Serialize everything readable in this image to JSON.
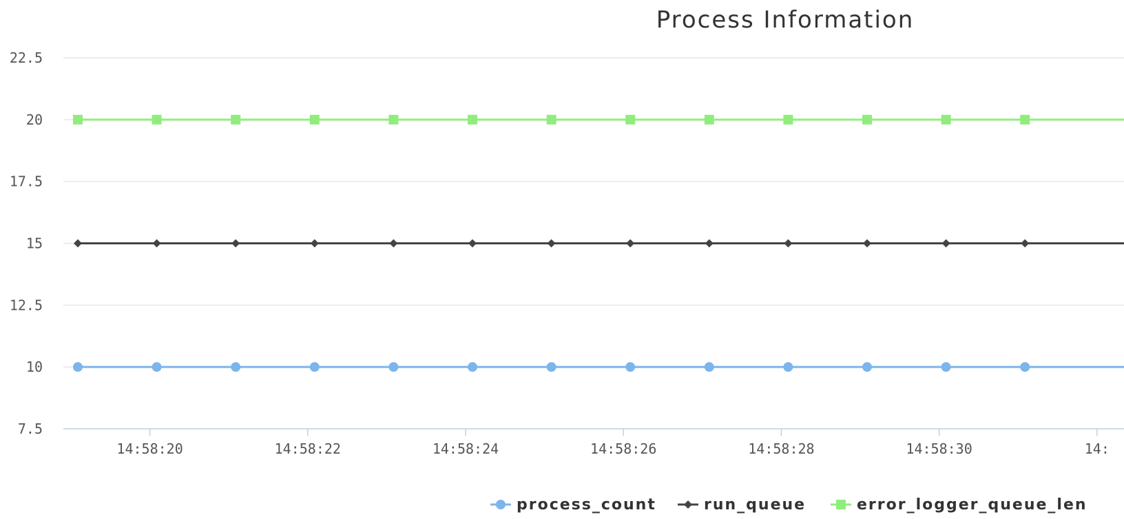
{
  "chart_data": {
    "type": "line",
    "title": "Process Information",
    "xlabel": "",
    "ylabel": "",
    "ylim": [
      7.5,
      22.5
    ],
    "y_ticks": [
      "22.5",
      "20",
      "17.5",
      "15",
      "12.5",
      "10",
      "7.5"
    ],
    "x_ticks": [
      "14:58:20",
      "14:58:22",
      "14:58:24",
      "14:58:26",
      "14:58:28",
      "14:58:30",
      "14:"
    ],
    "x": [
      "14:58:19",
      "14:58:20",
      "14:58:21",
      "14:58:22",
      "14:58:23",
      "14:58:24",
      "14:58:25",
      "14:58:26",
      "14:58:27",
      "14:58:28",
      "14:58:29",
      "14:58:30",
      "14:58:31"
    ],
    "grid": true,
    "legend": "bottom-center",
    "series": [
      {
        "name": "process_count",
        "color": "#7cb5ec",
        "marker": "circle",
        "values": [
          10,
          10,
          10,
          10,
          10,
          10,
          10,
          10,
          10,
          10,
          10,
          10,
          10
        ]
      },
      {
        "name": "run_queue",
        "color": "#434348",
        "marker": "diamond",
        "values": [
          15,
          15,
          15,
          15,
          15,
          15,
          15,
          15,
          15,
          15,
          15,
          15,
          15
        ]
      },
      {
        "name": "error_logger_queue_len",
        "color": "#90ed7d",
        "marker": "square",
        "values": [
          20,
          20,
          20,
          20,
          20,
          20,
          20,
          20,
          20,
          20,
          20,
          20,
          20
        ]
      }
    ]
  }
}
